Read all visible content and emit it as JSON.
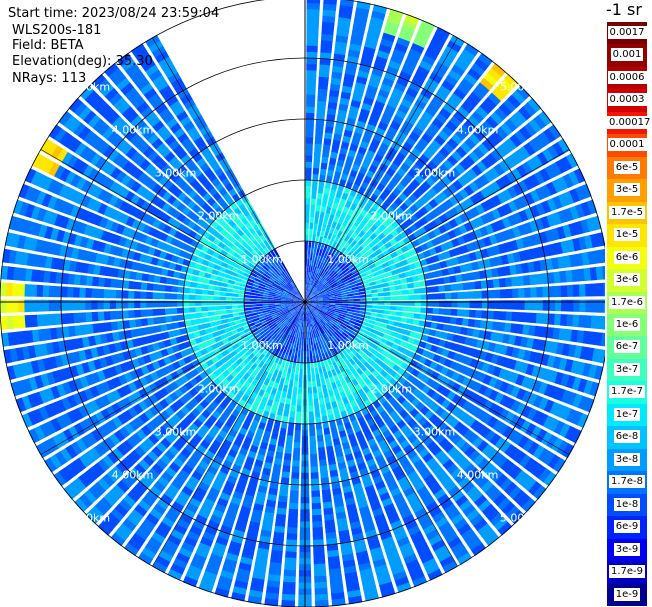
{
  "header": {
    "start_time": "Start time: 2023/08/24 23:59:04",
    "instrument": "WLS200s-181",
    "field": "Field: BETA",
    "elevation": "Elevation(deg): 35.30",
    "nrays": "NRays: 113"
  },
  "chart_data": {
    "type": "heatmap",
    "title": "",
    "projection": "polar-ppi",
    "field": "BETA",
    "elevation_deg": 35.3,
    "n_rays": 113,
    "max_range_km": 5.0,
    "range_rings_km": [
      1.0,
      2.0,
      3.0,
      4.0,
      5.0
    ],
    "range_ring_labels": [
      "1.00km",
      "2.00km",
      "3.00km",
      "4.00km",
      "5.00km"
    ],
    "grid": true,
    "missing_sector_deg": [
      330,
      360
    ],
    "dominant_value_near_range": "1e-7",
    "dominant_value_far_range": "1.7e-8",
    "highlights": [
      {
        "azimuth_deg": 20,
        "range_km": 5.0,
        "value": "3e-6"
      },
      {
        "azimuth_deg": 42,
        "range_km": 5.0,
        "value": "1.7e-5"
      },
      {
        "azimuth_deg": 300,
        "range_km": 5.0,
        "value": "1.7e-5"
      },
      {
        "azimuth_deg": 270,
        "range_km": 5.0,
        "value": "1e-5"
      }
    ],
    "colorbar": {
      "label": "-1 sr",
      "scale": "log",
      "ticks": [
        "0.0017",
        "0.001",
        "0.0006",
        "0.0003",
        "0.00017",
        "0.0001",
        "6e-5",
        "3e-5",
        "1.7e-5",
        "1e-5",
        "6e-6",
        "3e-6",
        "1.7e-6",
        "1e-6",
        "6e-7",
        "3e-7",
        "1.7e-7",
        "1e-7",
        "6e-8",
        "3e-8",
        "1.7e-8",
        "1e-8",
        "6e-9",
        "3e-9",
        "1.7e-9",
        "1e-9"
      ],
      "colors": [
        "#7a0000",
        "#920000",
        "#b00000",
        "#d40000",
        "#f21800",
        "#ff4a00",
        "#ff7a00",
        "#ffa000",
        "#ffc400",
        "#ffe600",
        "#f4ff0e",
        "#d2ff2e",
        "#aaff55",
        "#86ff79",
        "#62ff9b",
        "#3effbd",
        "#1affe0",
        "#00eaff",
        "#00c4ff",
        "#009cff",
        "#0074ff",
        "#004cff",
        "#0024ff",
        "#0000f4",
        "#0000c4",
        "#00008e"
      ]
    }
  }
}
